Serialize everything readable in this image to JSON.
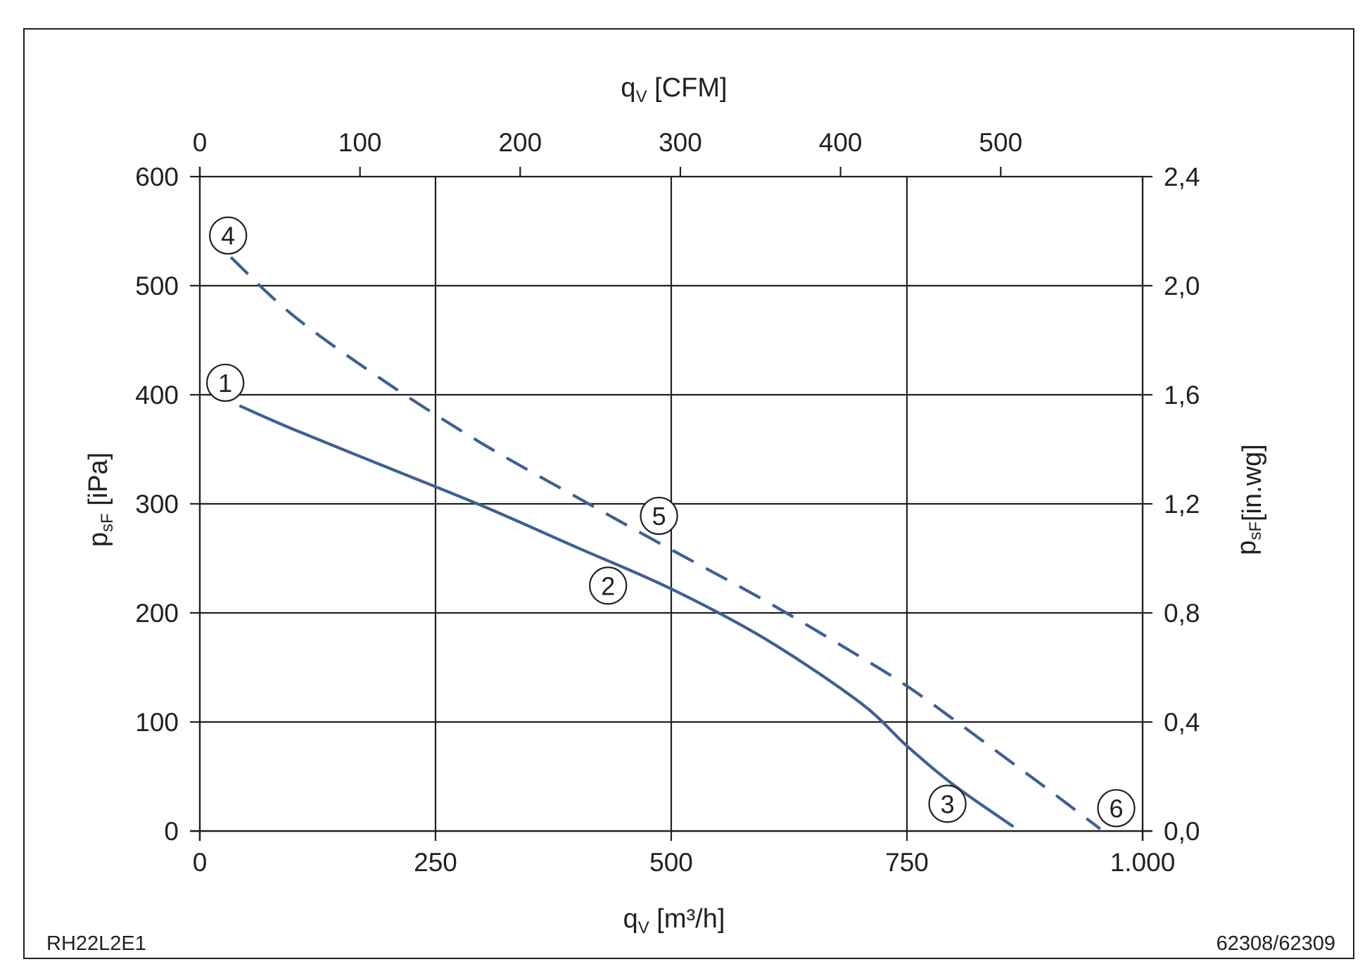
{
  "chart_data": {
    "type": "line",
    "x_axis_bottom": {
      "title": "q",
      "title_subscript": "V",
      "title_unit": "[m³/h]",
      "range": [
        0,
        1000
      ],
      "ticks": [
        0,
        250,
        500,
        750,
        1000
      ],
      "tick_labels": [
        "0",
        "250",
        "500",
        "750",
        "1.000"
      ]
    },
    "x_axis_top": {
      "title": "q",
      "title_subscript": "V",
      "title_unit": "[CFM]",
      "range": [
        0,
        588.6
      ],
      "ticks": [
        0,
        100,
        200,
        300,
        400,
        500
      ],
      "tick_labels": [
        "0",
        "100",
        "200",
        "300",
        "400",
        "500"
      ]
    },
    "y_axis_left": {
      "title": "p",
      "title_subscript": "sF",
      "title_unit": "[iPa]",
      "range": [
        0,
        600
      ],
      "ticks": [
        0,
        100,
        200,
        300,
        400,
        500,
        600
      ],
      "tick_labels": [
        "0",
        "100",
        "200",
        "300",
        "400",
        "500",
        "600"
      ]
    },
    "y_axis_right": {
      "title": "p",
      "title_subscript": "sF",
      "title_unit": "[in.wg]",
      "range": [
        0,
        2.4
      ],
      "ticks": [
        0,
        0.4,
        0.8,
        1.2,
        1.6,
        2.0,
        2.4
      ],
      "tick_labels": [
        "0,0",
        "0,4",
        "0,8",
        "1,2",
        "1,6",
        "2,0",
        "2,4"
      ]
    },
    "grid": true,
    "series": [
      {
        "style": "solid",
        "color": "#3d5f94",
        "x": [
          42,
          100,
          200,
          300,
          400,
          500,
          600,
          700,
          750,
          800,
          863
        ],
        "y": [
          390,
          368,
          333,
          298,
          260,
          222,
          176,
          118,
          78,
          42,
          4
        ]
      },
      {
        "style": "dashed",
        "color": "#3d5f94",
        "x": [
          33,
          100,
          200,
          300,
          400,
          500,
          600,
          700,
          750,
          800,
          850,
          900,
          955
        ],
        "y": [
          526,
          472,
          410,
          355,
          306,
          258,
          211,
          160,
          133,
          102,
          70,
          38,
          2
        ]
      }
    ],
    "markers": [
      {
        "label": "1",
        "x": 27,
        "y": 411
      },
      {
        "label": "2",
        "x": 433,
        "y": 225
      },
      {
        "label": "3",
        "x": 793,
        "y": 25
      },
      {
        "label": "4",
        "x": 30,
        "y": 546
      },
      {
        "label": "5",
        "x": 487,
        "y": 289
      },
      {
        "label": "6",
        "x": 972,
        "y": 21
      }
    ]
  },
  "footer": {
    "left": "RH22L2E1",
    "right": "62308/62309"
  }
}
